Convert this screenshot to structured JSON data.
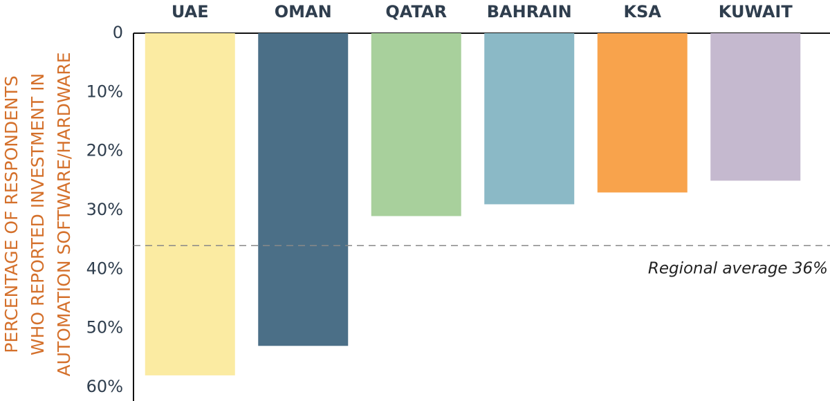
{
  "chart_data": {
    "type": "bar",
    "categories": [
      "UAE",
      "OMAN",
      "QATAR",
      "BAHRAIN",
      "KSA",
      "KUWAIT"
    ],
    "values": [
      58,
      53,
      31,
      29,
      27,
      25
    ],
    "colors": [
      "#fbeba2",
      "#4b6f87",
      "#a8d09c",
      "#8bb9c6",
      "#f8a34c",
      "#c5b9cf"
    ],
    "ylabel": [
      "PERCENTAGE OF RESPONDENTS",
      "WHO REPORTED INVESTMENT IN",
      "AUTOMATION SOFTWARE/HARDWARE"
    ],
    "ylim": [
      0,
      60
    ],
    "y_inverted": true,
    "yticks": [
      0,
      {
        "value": 10,
        "label": "10%"
      },
      {
        "value": 20,
        "label": "20%"
      },
      {
        "value": 30,
        "label": "30%"
      },
      {
        "value": 40,
        "label": "40%"
      },
      {
        "value": 50,
        "label": "50%"
      },
      {
        "value": 60,
        "label": "60%"
      }
    ],
    "reference_line": {
      "value": 36,
      "label": "Regional average 36%"
    }
  }
}
